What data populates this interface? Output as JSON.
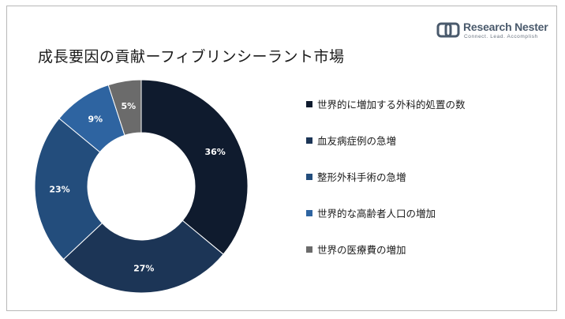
{
  "header": {
    "title": "成長要因の貢献ーフィブリンシーラント市場"
  },
  "logo": {
    "name": "Research Nester",
    "tagline": "Connect. Lead. Accomplish"
  },
  "chart_data": {
    "type": "pie",
    "donut": true,
    "categories": [
      "世界的に増加する外科的処置の数",
      "血友病症例の急増",
      "整形外科手術の急増",
      "世界的な高齢者人口の増加",
      "世界の医療費の増加"
    ],
    "values": [
      36,
      27,
      23,
      9,
      5
    ],
    "labels": [
      "36%",
      "27%",
      "23%",
      "9%",
      "5%"
    ],
    "colors": [
      "#0f1b2e",
      "#1c3556",
      "#234d7c",
      "#2e64a1",
      "#6b6b6b"
    ],
    "label_colors": [
      "#ffffff",
      "#ffffff",
      "#ffffff",
      "#ffffff",
      "#ffffff"
    ],
    "legend_position": "right",
    "title": "成長要因の貢献ーフィブリンシーラント市場"
  }
}
